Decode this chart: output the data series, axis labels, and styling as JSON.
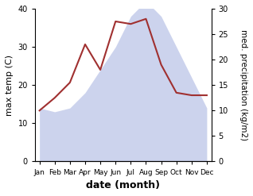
{
  "months": [
    "Jan",
    "Feb",
    "Mar",
    "Apr",
    "May",
    "Jun",
    "Jul",
    "Aug",
    "Sep",
    "Oct",
    "Nov",
    "Dec"
  ],
  "max_temp": [
    14,
    13,
    14,
    18,
    24,
    30,
    38,
    42,
    38,
    30,
    22,
    14
  ],
  "precipitation": [
    10,
    12.5,
    15.5,
    23,
    18,
    27.5,
    27,
    28,
    19,
    13.5,
    13,
    13
  ],
  "temp_fill_color": "#bcc5e8",
  "temp_fill_alpha": 0.75,
  "precip_color": "#a03030",
  "left_ylabel": "max temp (C)",
  "right_ylabel": "med. precipitation (kg/m2)",
  "xlabel": "date (month)",
  "ylim_left": [
    0,
    40
  ],
  "ylim_right": [
    0,
    30
  ],
  "left_yticks": [
    0,
    10,
    20,
    30,
    40
  ],
  "right_yticks": [
    0,
    5,
    10,
    15,
    20,
    25,
    30
  ]
}
